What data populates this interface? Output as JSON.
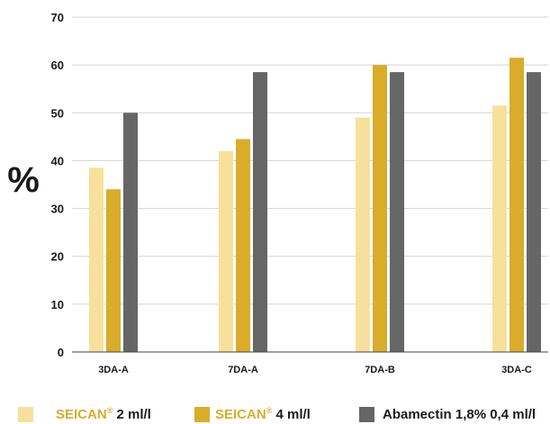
{
  "chart_data": {
    "type": "bar",
    "ylabel": "%",
    "ylim": [
      0,
      70
    ],
    "yticks": [
      "0",
      "10",
      "20",
      "30",
      "40",
      "50",
      "60",
      "70"
    ],
    "grid": true,
    "legend_position": "bottom",
    "categories": [
      "3DA-A",
      "7DA-A",
      "7DA-B",
      "3DA-C"
    ],
    "series": [
      {
        "name": "SEICAN® 2 ml/l",
        "color": "#f7e09b",
        "values": [
          38.5,
          42,
          49,
          51.5
        ]
      },
      {
        "name": "SEICAN® 4 ml/l",
        "color": "#d9ac2a",
        "values": [
          34,
          44.5,
          60,
          61.5
        ]
      },
      {
        "name": "Abamectin 1,8% 0,4 ml/l",
        "color": "#666666",
        "values": [
          50,
          58.5,
          58.5,
          58.5
        ]
      }
    ]
  },
  "legend": {
    "items": [
      {
        "brand": "SEICAN",
        "reg": "®",
        "rest": " 2 ml/l",
        "color": "#f7e09b"
      },
      {
        "brand": "SEICAN",
        "reg": "®",
        "rest": " 4 ml/l",
        "color": "#d9ac2a"
      },
      {
        "brand": "",
        "reg": "",
        "rest": "Abamectin 1,8% 0,4 ml/l",
        "color": "#666666"
      }
    ]
  }
}
